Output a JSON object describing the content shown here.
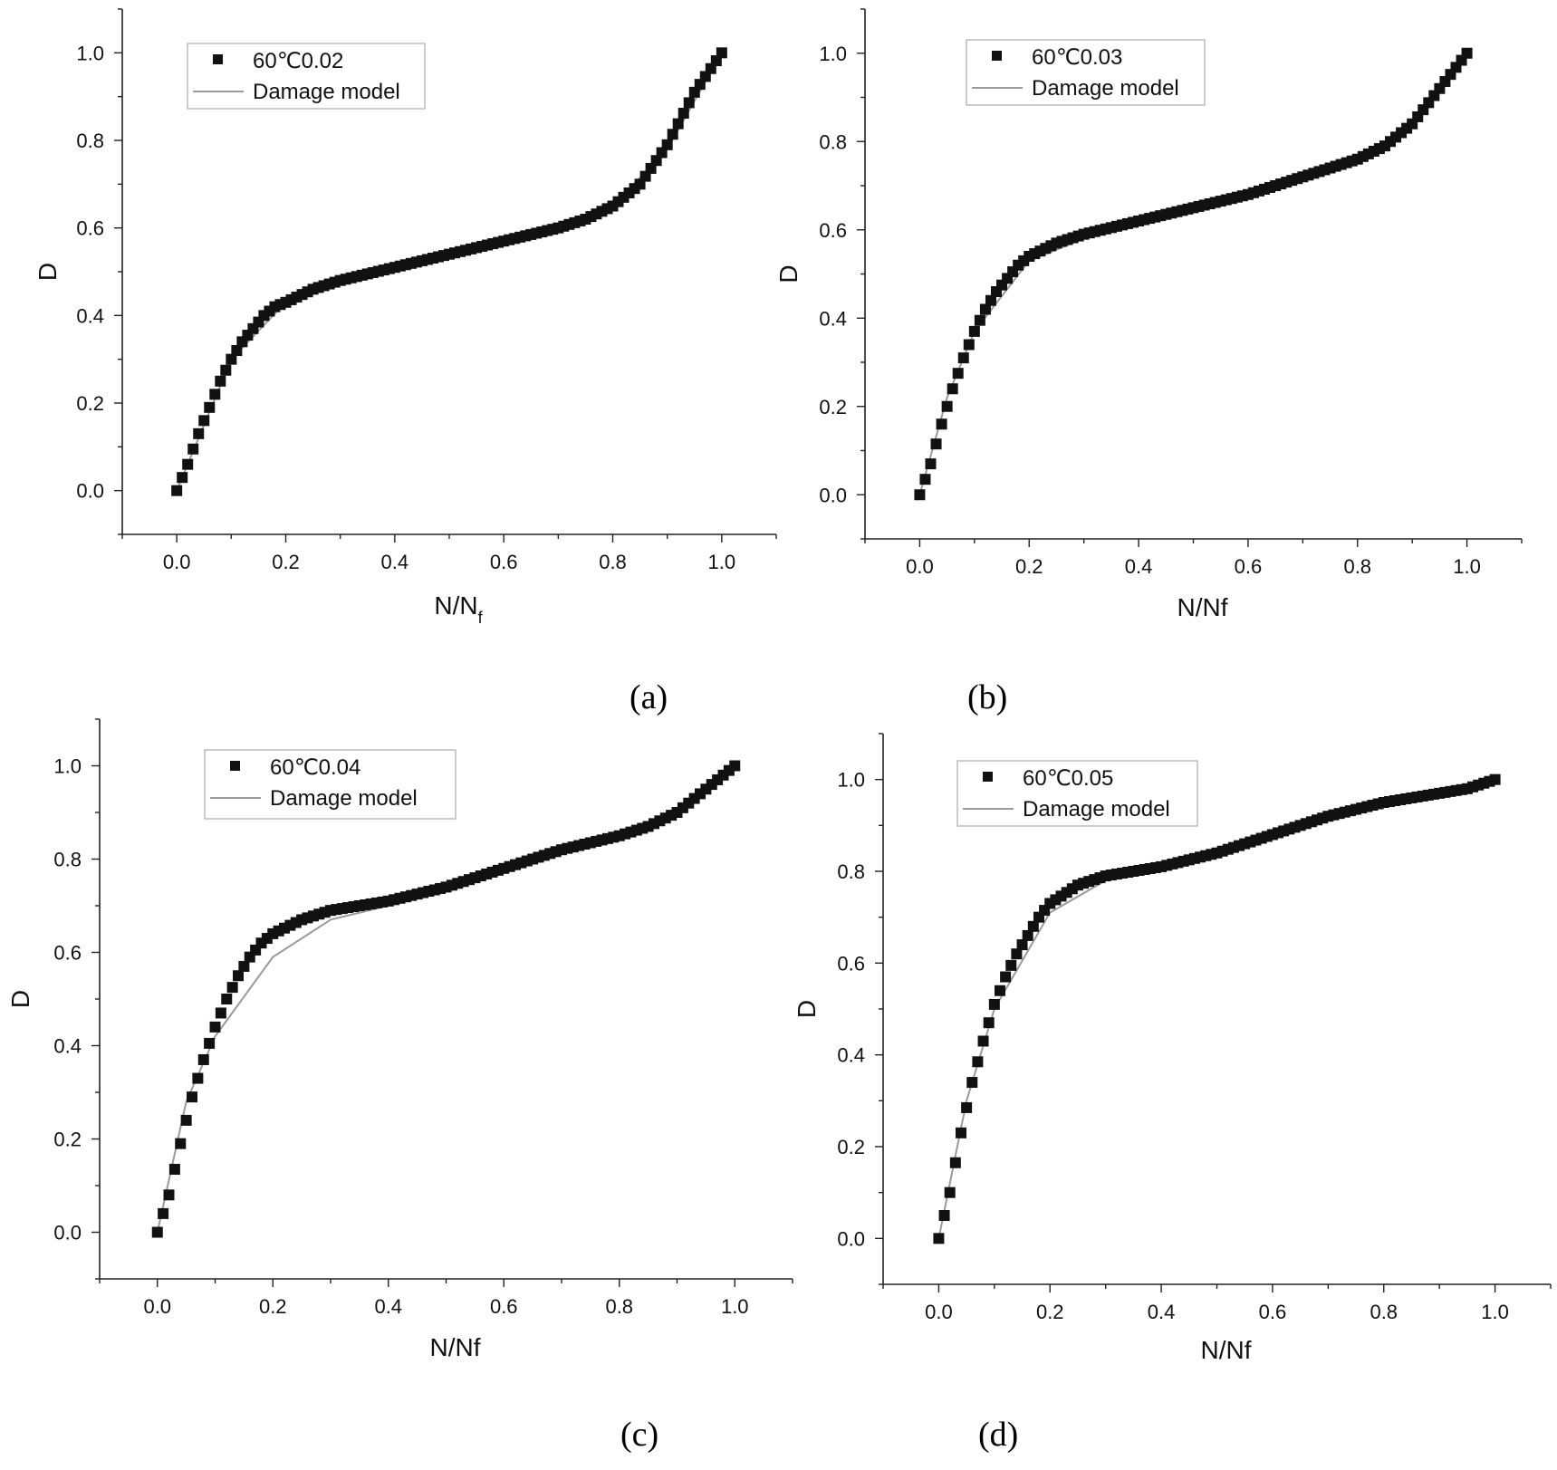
{
  "chart_data": [
    {
      "panel": "(a)",
      "type": "scatter",
      "xlabel_main": "N/N",
      "xlabel_sub": "f",
      "ylabel": "D",
      "xlim": [
        -0.1,
        1.1
      ],
      "ylim": [
        -0.1,
        1.1
      ],
      "xticks": [
        "0.0",
        "0.2",
        "0.4",
        "0.6",
        "0.8",
        "1.0"
      ],
      "yticks": [
        "0.0",
        "0.2",
        "0.4",
        "0.6",
        "0.8",
        "1.0"
      ],
      "legend": {
        "scatter": "60℃0.02",
        "line": "Damage model"
      },
      "series": [
        {
          "name": "60℃0.02",
          "kind": "scatter",
          "x": [
            0,
            0.02,
            0.04,
            0.06,
            0.08,
            0.1,
            0.12,
            0.14,
            0.16,
            0.18,
            0.2,
            0.25,
            0.3,
            0.4,
            0.5,
            0.6,
            0.7,
            0.75,
            0.8,
            0.85,
            0.9,
            0.95,
            1.0
          ],
          "y": [
            0,
            0.06,
            0.13,
            0.19,
            0.25,
            0.3,
            0.34,
            0.37,
            0.4,
            0.42,
            0.43,
            0.46,
            0.48,
            0.51,
            0.54,
            0.57,
            0.6,
            0.62,
            0.65,
            0.7,
            0.79,
            0.91,
            1.0
          ]
        },
        {
          "name": "Damage model",
          "kind": "line",
          "x": [
            0,
            0.1,
            0.2,
            0.3,
            0.5,
            0.7,
            0.8,
            0.9,
            1.0
          ],
          "y": [
            0,
            0.3,
            0.43,
            0.48,
            0.54,
            0.6,
            0.65,
            0.78,
            1.0
          ]
        }
      ]
    },
    {
      "panel": "(b)",
      "type": "scatter",
      "xlabel_main": "N/Nf",
      "xlabel_sub": "",
      "ylabel": "D",
      "xlim": [
        -0.1,
        1.1
      ],
      "ylim": [
        -0.1,
        1.1
      ],
      "xticks": [
        "0.0",
        "0.2",
        "0.4",
        "0.6",
        "0.8",
        "1.0"
      ],
      "yticks": [
        "0.0",
        "0.2",
        "0.4",
        "0.6",
        "0.8",
        "1.0"
      ],
      "legend": {
        "scatter": "60℃0.03",
        "line": "Damage model"
      },
      "series": [
        {
          "name": "60℃0.03",
          "kind": "scatter",
          "x": [
            0,
            0.02,
            0.04,
            0.06,
            0.08,
            0.1,
            0.12,
            0.14,
            0.16,
            0.18,
            0.2,
            0.25,
            0.3,
            0.4,
            0.5,
            0.6,
            0.7,
            0.8,
            0.85,
            0.9,
            0.95,
            1.0
          ],
          "y": [
            0,
            0.07,
            0.16,
            0.24,
            0.31,
            0.37,
            0.42,
            0.46,
            0.49,
            0.52,
            0.54,
            0.57,
            0.59,
            0.62,
            0.65,
            0.68,
            0.72,
            0.76,
            0.79,
            0.84,
            0.92,
            1.0
          ]
        },
        {
          "name": "Damage model",
          "kind": "line",
          "x": [
            0,
            0.05,
            0.1,
            0.2,
            0.3,
            0.5,
            0.7,
            0.8,
            0.9,
            1.0
          ],
          "y": [
            0,
            0.22,
            0.37,
            0.53,
            0.58,
            0.65,
            0.72,
            0.76,
            0.84,
            1.0
          ]
        }
      ]
    },
    {
      "panel": "(c)",
      "type": "scatter",
      "xlabel_main": "N/Nf",
      "xlabel_sub": "",
      "ylabel": "D",
      "xlim": [
        -0.1,
        1.1
      ],
      "ylim": [
        -0.1,
        1.1
      ],
      "xticks": [
        "0.0",
        "0.2",
        "0.4",
        "0.6",
        "0.8",
        "1.0"
      ],
      "yticks": [
        "0.0",
        "0.2",
        "0.4",
        "0.6",
        "0.8",
        "1.0"
      ],
      "legend": {
        "scatter": "60℃0.04",
        "line": "Damage model"
      },
      "series": [
        {
          "name": "60℃0.04",
          "kind": "scatter",
          "x": [
            0,
            0.02,
            0.04,
            0.06,
            0.08,
            0.1,
            0.12,
            0.14,
            0.16,
            0.18,
            0.2,
            0.25,
            0.3,
            0.4,
            0.5,
            0.6,
            0.7,
            0.8,
            0.85,
            0.9,
            0.95,
            1.0
          ],
          "y": [
            0,
            0.08,
            0.19,
            0.29,
            0.37,
            0.44,
            0.5,
            0.55,
            0.59,
            0.62,
            0.64,
            0.67,
            0.69,
            0.71,
            0.74,
            0.78,
            0.82,
            0.85,
            0.87,
            0.9,
            0.95,
            1.0
          ]
        },
        {
          "name": "Damage model",
          "kind": "line",
          "x": [
            0,
            0.05,
            0.1,
            0.2,
            0.3,
            0.5,
            0.7,
            0.8,
            0.9,
            1.0
          ],
          "y": [
            0,
            0.28,
            0.42,
            0.59,
            0.67,
            0.73,
            0.81,
            0.85,
            0.9,
            1.0
          ]
        }
      ]
    },
    {
      "panel": "(d)",
      "type": "scatter",
      "xlabel_main": "N/Nf",
      "xlabel_sub": "",
      "ylabel": "D",
      "xlim": [
        -0.1,
        1.1
      ],
      "ylim": [
        -0.1,
        1.1
      ],
      "xticks": [
        "0.0",
        "0.2",
        "0.4",
        "0.6",
        "0.8",
        "1.0"
      ],
      "yticks": [
        "0.0",
        "0.2",
        "0.4",
        "0.6",
        "0.8",
        "1.0"
      ],
      "legend": {
        "scatter": "60℃0.05",
        "line": "Damage model"
      },
      "series": [
        {
          "name": "60℃0.05",
          "kind": "scatter",
          "x": [
            0,
            0.02,
            0.04,
            0.06,
            0.08,
            0.1,
            0.12,
            0.14,
            0.16,
            0.18,
            0.2,
            0.25,
            0.3,
            0.4,
            0.5,
            0.6,
            0.7,
            0.8,
            0.9,
            0.95,
            1.0
          ],
          "y": [
            0,
            0.1,
            0.23,
            0.34,
            0.43,
            0.51,
            0.57,
            0.62,
            0.66,
            0.7,
            0.73,
            0.77,
            0.79,
            0.81,
            0.84,
            0.88,
            0.92,
            0.95,
            0.97,
            0.98,
            1.0
          ]
        },
        {
          "name": "Damage model",
          "kind": "line",
          "x": [
            0,
            0.05,
            0.1,
            0.2,
            0.3,
            0.5,
            0.7,
            0.8,
            0.9,
            1.0
          ],
          "y": [
            0,
            0.3,
            0.5,
            0.71,
            0.78,
            0.83,
            0.91,
            0.94,
            0.97,
            1.0
          ]
        }
      ]
    }
  ]
}
